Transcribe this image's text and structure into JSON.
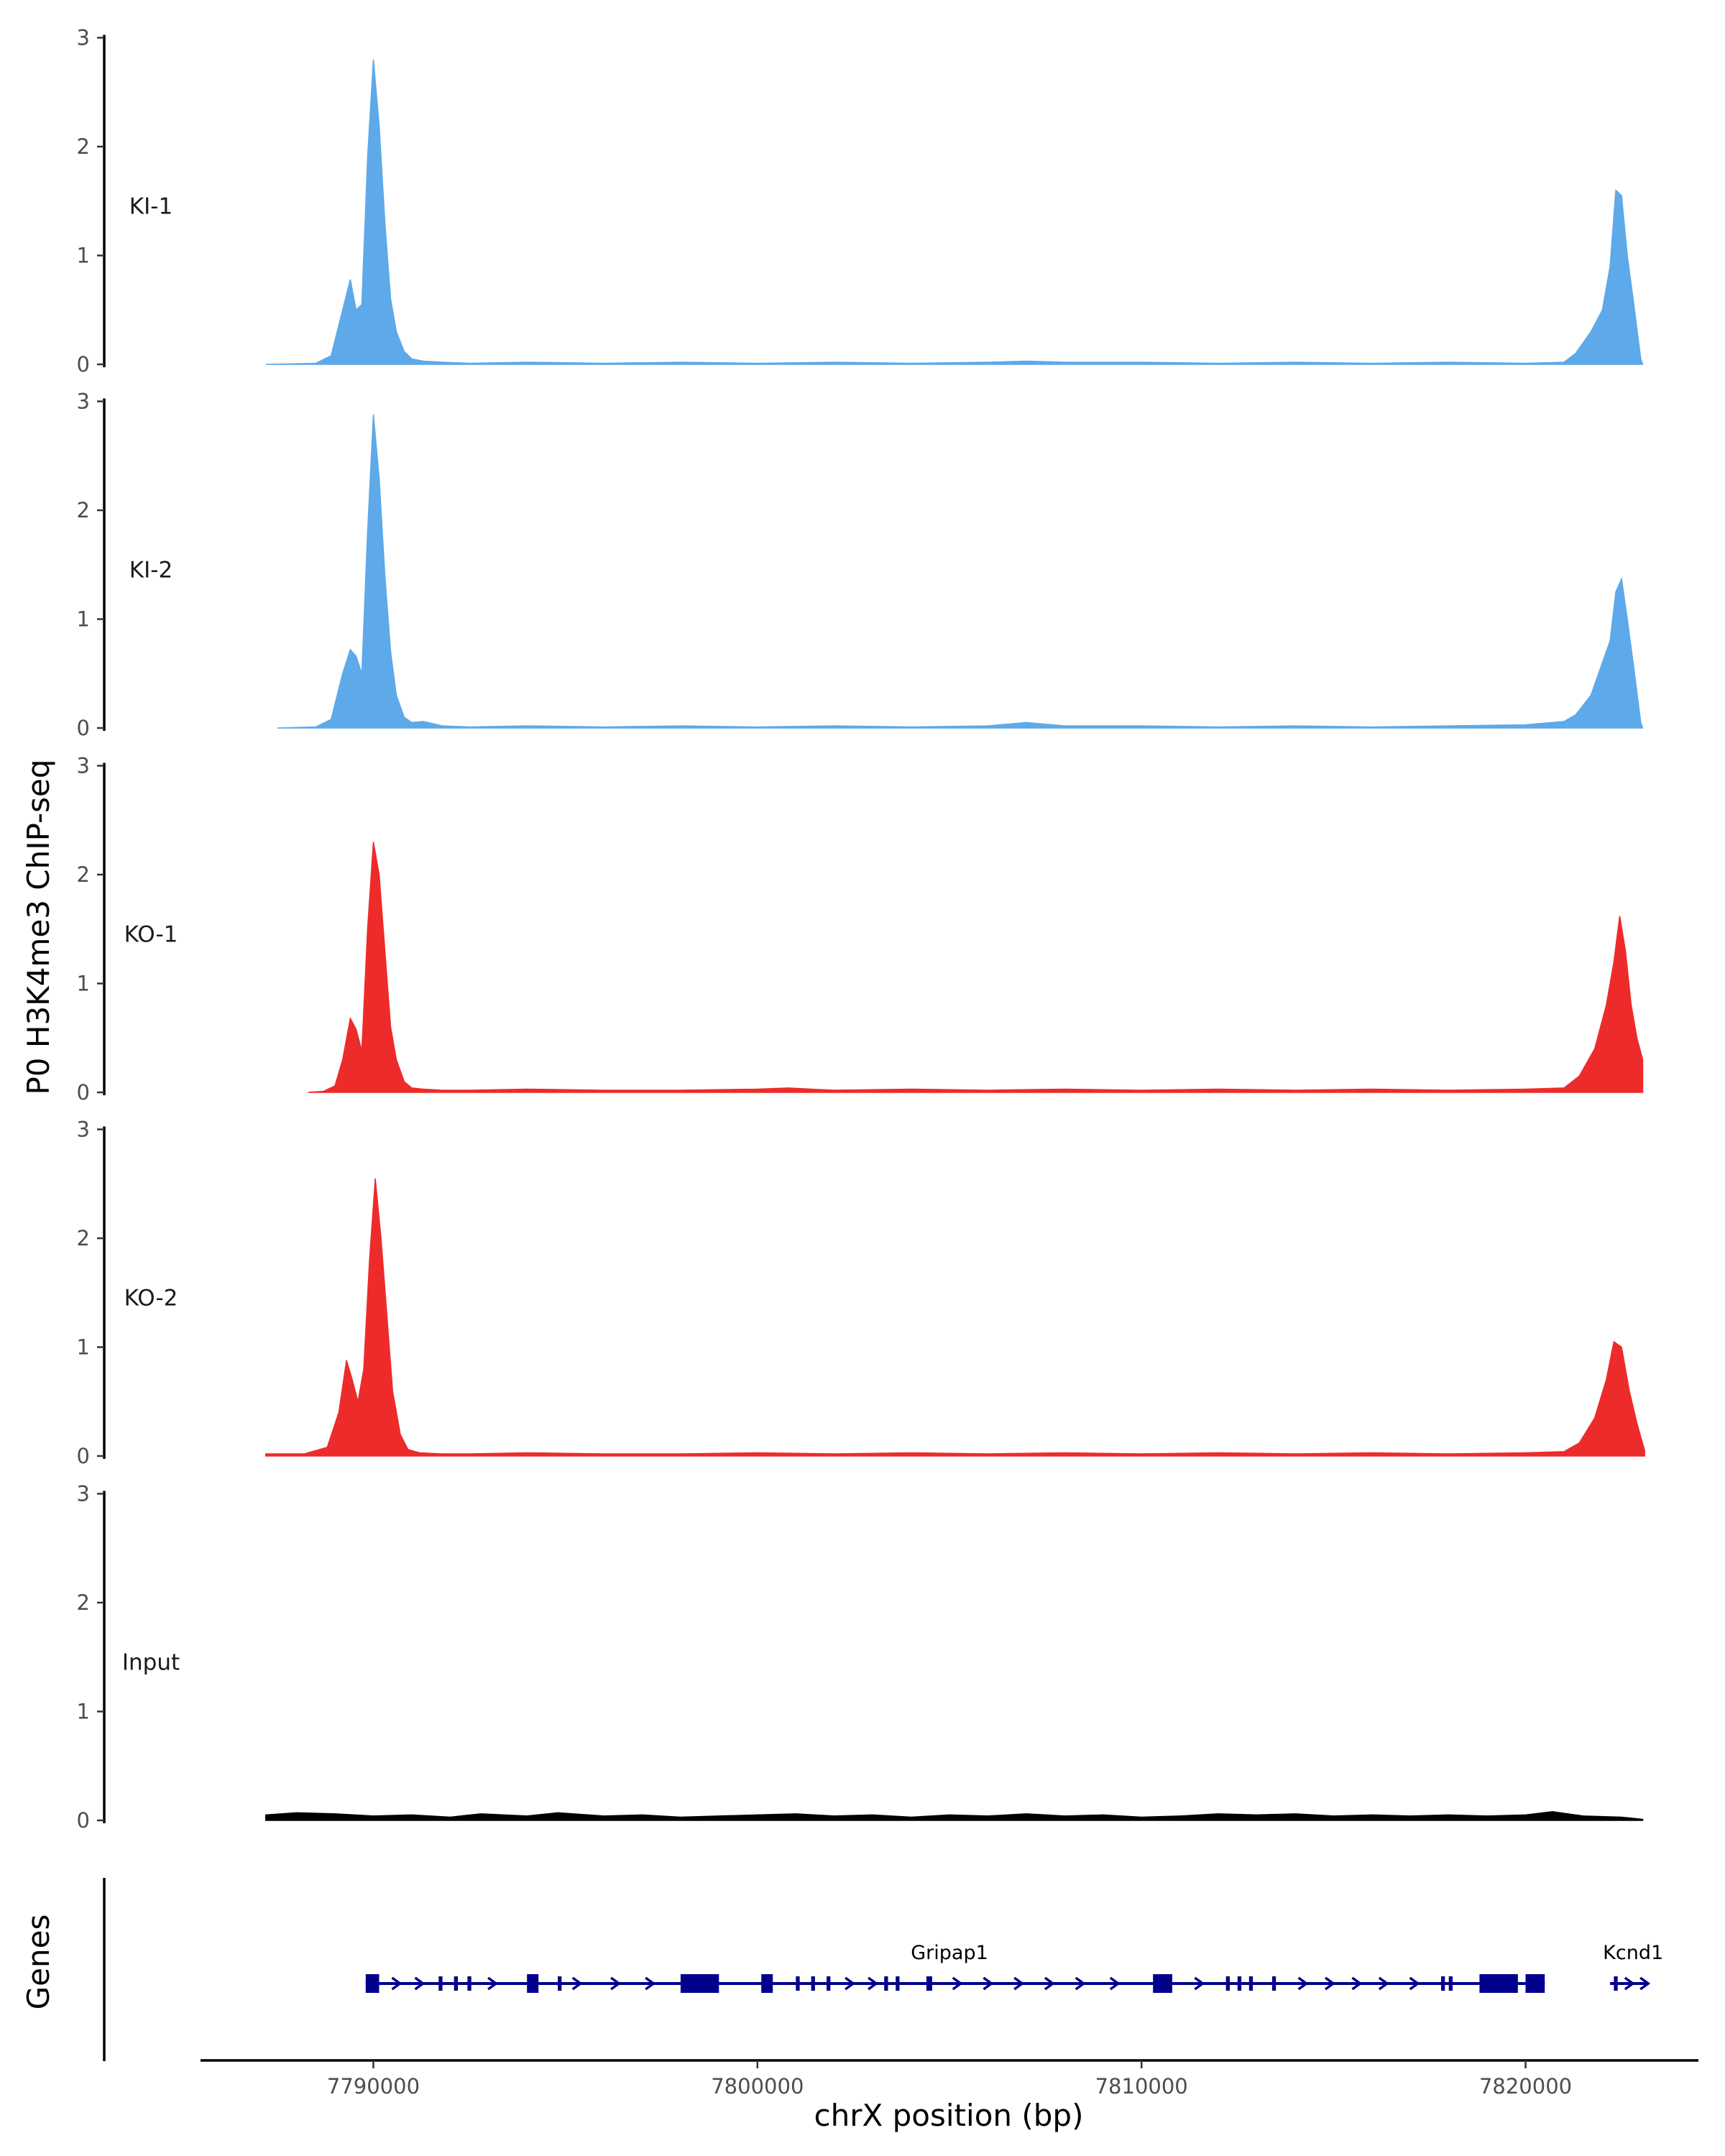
{
  "chart_data": {
    "type": "area",
    "ylabel": "P0 H3K4me3 ChIP-seq",
    "xlabel": "chrX position (bp)",
    "genes_axis_label": "Genes",
    "xlim": [
      7785500,
      7824500
    ],
    "xticks": [
      7790000,
      7800000,
      7810000,
      7820000
    ],
    "xtick_labels": [
      "7790000",
      "7800000",
      "7810000",
      "7820000"
    ],
    "ylim": [
      0,
      3
    ],
    "yticks": [
      0,
      1,
      2,
      3
    ],
    "ytick_labels": [
      "0",
      "1",
      "2",
      "3"
    ],
    "tracks": [
      {
        "name": "KI-1",
        "color": "#5DA9E9",
        "x": [
          7787200,
          7788500,
          7788900,
          7789200,
          7789400,
          7789550,
          7789700,
          7789850,
          7790000,
          7790150,
          7790300,
          7790450,
          7790600,
          7790800,
          7791000,
          7791300,
          7791800,
          7792500,
          7794000,
          7796000,
          7798000,
          7800000,
          7802000,
          7804000,
          7806000,
          7807000,
          7808000,
          7810000,
          7812000,
          7814000,
          7816000,
          7818000,
          7820000,
          7821000,
          7821300,
          7821700,
          7822000,
          7822200,
          7822350,
          7822500,
          7822650,
          7822800,
          7823000,
          7823050
        ],
        "values": [
          0,
          0.01,
          0.08,
          0.5,
          0.78,
          0.5,
          0.55,
          1.9,
          2.8,
          2.2,
          1.3,
          0.6,
          0.3,
          0.12,
          0.05,
          0.03,
          0.02,
          0.01,
          0.02,
          0.01,
          0.02,
          0.01,
          0.02,
          0.01,
          0.02,
          0.03,
          0.02,
          0.02,
          0.01,
          0.02,
          0.01,
          0.02,
          0.01,
          0.02,
          0.1,
          0.3,
          0.5,
          0.9,
          1.6,
          1.55,
          1.0,
          0.6,
          0.05,
          0
        ]
      },
      {
        "name": "KI-2",
        "color": "#5DA9E9",
        "x": [
          7787500,
          7788500,
          7788900,
          7789200,
          7789400,
          7789550,
          7789700,
          7789850,
          7790000,
          7790150,
          7790300,
          7790450,
          7790600,
          7790800,
          7791000,
          7791300,
          7791800,
          7792500,
          7794000,
          7796000,
          7798000,
          7800000,
          7802000,
          7804000,
          7806000,
          7807000,
          7808000,
          7810000,
          7812000,
          7814000,
          7816000,
          7818000,
          7820000,
          7821000,
          7821300,
          7821700,
          7822000,
          7822200,
          7822350,
          7822500,
          7822650,
          7822800,
          7823000,
          7823050
        ],
        "values": [
          0,
          0.01,
          0.08,
          0.5,
          0.72,
          0.66,
          0.5,
          1.8,
          2.88,
          2.3,
          1.4,
          0.7,
          0.3,
          0.1,
          0.05,
          0.06,
          0.02,
          0.01,
          0.02,
          0.01,
          0.02,
          0.01,
          0.02,
          0.01,
          0.02,
          0.05,
          0.02,
          0.02,
          0.01,
          0.02,
          0.01,
          0.02,
          0.03,
          0.06,
          0.12,
          0.3,
          0.6,
          0.8,
          1.25,
          1.37,
          1.0,
          0.6,
          0.05,
          0
        ]
      },
      {
        "name": "KO-1",
        "color": "#EE2B2B",
        "x": [
          7788300,
          7788700,
          7789000,
          7789200,
          7789400,
          7789550,
          7789700,
          7789850,
          7790000,
          7790150,
          7790300,
          7790450,
          7790600,
          7790800,
          7791000,
          7791300,
          7791800,
          7792500,
          7794000,
          7796000,
          7798000,
          7800000,
          7800800,
          7802000,
          7804000,
          7806000,
          7808000,
          7810000,
          7812000,
          7814000,
          7816000,
          7818000,
          7820000,
          7821000,
          7821400,
          7821800,
          7822100,
          7822300,
          7822450,
          7822600,
          7822750,
          7822900,
          7823050
        ],
        "values": [
          0,
          0.01,
          0.06,
          0.3,
          0.68,
          0.58,
          0.38,
          1.5,
          2.3,
          2.0,
          1.3,
          0.6,
          0.3,
          0.1,
          0.04,
          0.03,
          0.02,
          0.02,
          0.03,
          0.02,
          0.02,
          0.03,
          0.04,
          0.02,
          0.03,
          0.02,
          0.03,
          0.02,
          0.03,
          0.02,
          0.03,
          0.02,
          0.03,
          0.04,
          0.15,
          0.4,
          0.8,
          1.2,
          1.62,
          1.3,
          0.8,
          0.5,
          0.3
        ]
      },
      {
        "name": "KO-2",
        "color": "#EE2B2B",
        "x": [
          7787200,
          7788200,
          7788800,
          7789100,
          7789300,
          7789450,
          7789600,
          7789750,
          7789900,
          7790050,
          7790200,
          7790350,
          7790500,
          7790700,
          7790900,
          7791200,
          7791800,
          7792500,
          7794000,
          7796000,
          7798000,
          7800000,
          7802000,
          7804000,
          7806000,
          7808000,
          7810000,
          7812000,
          7814000,
          7816000,
          7818000,
          7820000,
          7821000,
          7821400,
          7821800,
          7822100,
          7822300,
          7822500,
          7822700,
          7822900,
          7823100
        ],
        "values": [
          0.02,
          0.02,
          0.08,
          0.4,
          0.88,
          0.7,
          0.5,
          0.8,
          1.8,
          2.55,
          2.0,
          1.3,
          0.6,
          0.2,
          0.06,
          0.03,
          0.02,
          0.02,
          0.03,
          0.02,
          0.02,
          0.03,
          0.02,
          0.03,
          0.02,
          0.03,
          0.02,
          0.03,
          0.02,
          0.03,
          0.02,
          0.03,
          0.04,
          0.12,
          0.35,
          0.7,
          1.05,
          1.0,
          0.6,
          0.3,
          0.05
        ]
      },
      {
        "name": "Input",
        "color": "#000000",
        "x": [
          7787200,
          7788000,
          7789000,
          7790000,
          7791000,
          7792000,
          7792800,
          7794000,
          7794800,
          7796000,
          7797000,
          7798000,
          7799000,
          7800000,
          7801000,
          7802000,
          7803000,
          7804000,
          7805000,
          7806000,
          7807000,
          7808000,
          7809000,
          7810000,
          7811000,
          7812000,
          7813000,
          7814000,
          7815000,
          7816000,
          7817000,
          7818000,
          7819000,
          7820000,
          7820700,
          7821500,
          7822500,
          7823050
        ],
        "values": [
          0.05,
          0.07,
          0.06,
          0.04,
          0.05,
          0.03,
          0.06,
          0.04,
          0.07,
          0.04,
          0.05,
          0.03,
          0.04,
          0.05,
          0.06,
          0.04,
          0.05,
          0.03,
          0.05,
          0.04,
          0.06,
          0.04,
          0.05,
          0.03,
          0.04,
          0.06,
          0.05,
          0.06,
          0.04,
          0.05,
          0.04,
          0.05,
          0.04,
          0.05,
          0.08,
          0.04,
          0.03,
          0.01
        ]
      }
    ],
    "gene_track": {
      "color": "#00008B",
      "line_start": 7789800,
      "line_end": 7820500,
      "exons": [
        [
          7789800,
          7790150
        ],
        [
          7791700,
          7791800
        ],
        [
          7792100,
          7792200
        ],
        [
          7792450,
          7792550
        ],
        [
          7794000,
          7794300
        ],
        [
          7794800,
          7794900
        ],
        [
          7798000,
          7799000
        ],
        [
          7800100,
          7800400
        ],
        [
          7801000,
          7801100
        ],
        [
          7801400,
          7801500
        ],
        [
          7801800,
          7801900
        ],
        [
          7803300,
          7803400
        ],
        [
          7803600,
          7803700
        ],
        [
          7804400,
          7804550
        ],
        [
          7810300,
          7810800
        ],
        [
          7812200,
          7812300
        ],
        [
          7812500,
          7812600
        ],
        [
          7812800,
          7812900
        ],
        [
          7813400,
          7813500
        ],
        [
          7817800,
          7817900
        ],
        [
          7818000,
          7818100
        ],
        [
          7818800,
          7819800
        ],
        [
          7820000,
          7820500
        ],
        [
          7822300,
          7822400
        ]
      ],
      "arrows_x": [
        7790600,
        7791200,
        7793100,
        7795300,
        7796300,
        7797200,
        7802400,
        7803000,
        7805200,
        7806000,
        7806800,
        7807600,
        7808400,
        7809300,
        7811500,
        7814200,
        7814900,
        7815600,
        7816300,
        7817100,
        7822700,
        7823100
      ],
      "kcnd1_line": [
        7822200,
        7823200
      ],
      "labels": [
        {
          "text": "Gripap1",
          "x": 7805000
        },
        {
          "text": "Kcnd1",
          "x": 7822800
        }
      ]
    }
  }
}
